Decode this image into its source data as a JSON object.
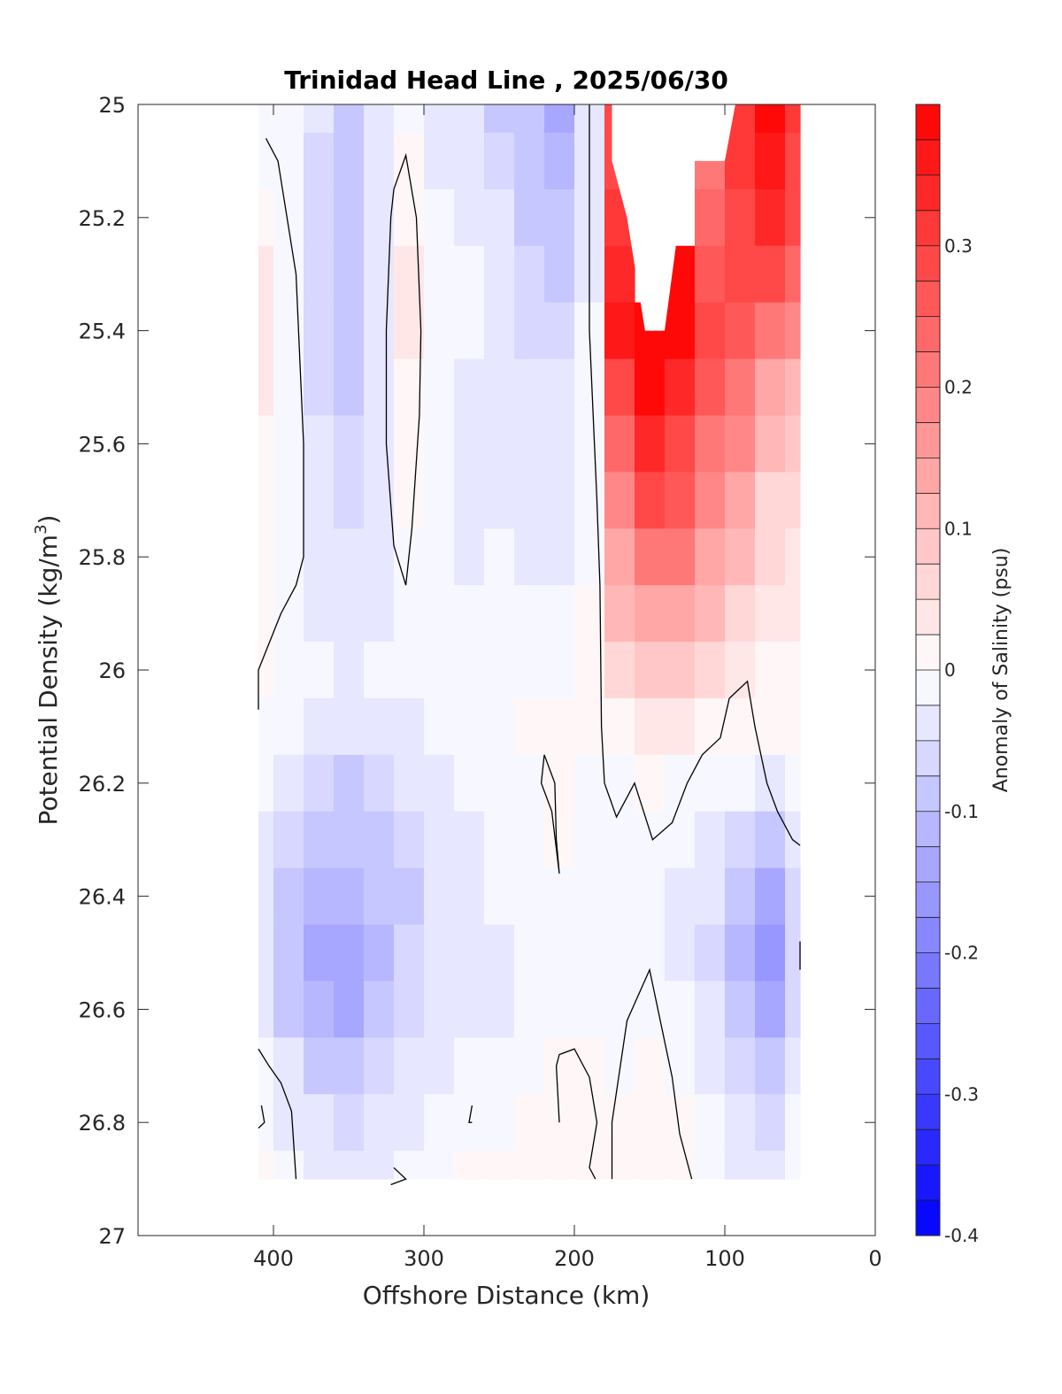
{
  "chart_data": {
    "type": "heatmap",
    "title": "Trinidad Head Line , 2025/06/30",
    "xlabel": "Offshore Distance (km)",
    "ylabel": "Potential Density (kg/m",
    "ylabel_sup": "3",
    "ylabel_close": ")",
    "colorbar_label": "Anomaly of Salinity (psu)",
    "xlim": [
      490,
      0
    ],
    "ylim": [
      25,
      27
    ],
    "x_reversed": true,
    "y_reversed": true,
    "x_ticks": [
      400,
      300,
      200,
      100,
      0
    ],
    "x_tick_labels": [
      "400",
      "300",
      "200",
      "100",
      "0"
    ],
    "y_ticks": [
      25,
      25.2,
      25.4,
      25.6,
      25.8,
      26,
      26.2,
      26.4,
      26.6,
      26.8,
      27
    ],
    "y_tick_labels": [
      "25",
      "25.2",
      "25.4",
      "25.6",
      "25.8",
      "26",
      "26.2",
      "26.4",
      "26.6",
      "26.8",
      "27"
    ],
    "colorbar": {
      "range": [
        -0.4,
        0.4
      ],
      "levels": 32,
      "low_color": "#0000ff",
      "mid_color": "#ffffff",
      "high_color": "#ff0000",
      "ticks": [
        0.3,
        0.2,
        0.1,
        0,
        -0.1,
        -0.2,
        -0.3,
        -0.4
      ],
      "tick_labels": [
        "0.3",
        "0.2",
        "0.1",
        "0",
        "-0.1",
        "-0.2",
        "-0.3",
        "-0.4"
      ]
    },
    "grid": {
      "x": [
        410,
        390,
        370,
        350,
        330,
        310,
        290,
        270,
        250,
        230,
        210,
        190,
        170,
        150,
        130,
        110,
        90,
        70,
        50
      ],
      "y": [
        25.0,
        25.1,
        25.2,
        25.3,
        25.4,
        25.5,
        25.6,
        25.7,
        25.8,
        25.9,
        26.0,
        26.1,
        26.2,
        26.3,
        26.4,
        26.5,
        26.6,
        26.7,
        26.8,
        26.9
      ],
      "z": [
        [
          -0.01,
          -0.02,
          -0.05,
          -0.08,
          -0.05,
          -0.02,
          -0.03,
          -0.05,
          -0.08,
          -0.1,
          -0.14,
          -0.05,
          0.28,
          null,
          null,
          0.2,
          0.32,
          0.38,
          0.32
        ],
        [
          -0.01,
          -0.02,
          -0.06,
          -0.09,
          -0.05,
          0.0,
          -0.03,
          -0.05,
          -0.07,
          -0.09,
          -0.12,
          -0.04,
          0.3,
          null,
          null,
          0.22,
          0.32,
          0.36,
          0.3
        ],
        [
          0.02,
          -0.02,
          -0.07,
          -0.1,
          -0.05,
          0.02,
          -0.02,
          -0.04,
          -0.05,
          -0.08,
          -0.1,
          -0.04,
          0.32,
          null,
          null,
          0.24,
          0.3,
          0.34,
          0.28
        ],
        [
          0.03,
          -0.02,
          -0.07,
          -0.1,
          -0.04,
          0.03,
          -0.01,
          -0.02,
          -0.04,
          -0.07,
          -0.08,
          -0.03,
          0.34,
          null,
          0.38,
          0.26,
          0.28,
          0.3,
          0.24
        ],
        [
          0.03,
          -0.02,
          -0.06,
          -0.09,
          -0.04,
          0.03,
          -0.01,
          -0.02,
          -0.03,
          -0.06,
          -0.06,
          -0.02,
          0.36,
          0.4,
          0.38,
          0.3,
          0.26,
          0.22,
          0.18
        ],
        [
          0.03,
          -0.02,
          -0.06,
          -0.08,
          -0.04,
          0.02,
          -0.02,
          -0.03,
          -0.03,
          -0.05,
          -0.05,
          -0.02,
          0.3,
          0.38,
          0.34,
          0.26,
          0.22,
          0.14,
          0.12
        ],
        [
          0.02,
          -0.02,
          -0.05,
          -0.07,
          -0.04,
          0.01,
          -0.02,
          -0.03,
          -0.03,
          -0.05,
          -0.04,
          -0.01,
          0.24,
          0.34,
          0.3,
          0.22,
          0.18,
          0.1,
          0.08
        ],
        [
          0.02,
          -0.02,
          -0.05,
          -0.06,
          -0.04,
          0.0,
          -0.02,
          -0.03,
          -0.03,
          -0.04,
          -0.03,
          -0.01,
          0.18,
          0.28,
          0.26,
          0.18,
          0.14,
          0.06,
          0.06
        ],
        [
          0.01,
          -0.02,
          -0.04,
          -0.05,
          -0.03,
          -0.01,
          -0.02,
          -0.03,
          -0.02,
          -0.03,
          -0.03,
          -0.01,
          0.14,
          0.22,
          0.2,
          0.14,
          0.1,
          0.05,
          0.04
        ],
        [
          0.0,
          -0.02,
          -0.03,
          -0.04,
          -0.03,
          -0.02,
          -0.02,
          -0.02,
          -0.02,
          -0.02,
          -0.02,
          0.0,
          0.1,
          0.14,
          0.14,
          0.1,
          0.06,
          0.04,
          0.03
        ],
        [
          0.0,
          -0.01,
          -0.02,
          -0.03,
          -0.02,
          -0.02,
          -0.02,
          -0.02,
          -0.01,
          -0.01,
          -0.01,
          0.0,
          0.06,
          0.08,
          0.08,
          0.06,
          0.04,
          0.02,
          0.02
        ],
        [
          -0.01,
          -0.02,
          -0.04,
          -0.05,
          -0.04,
          -0.03,
          -0.02,
          -0.01,
          -0.01,
          0.0,
          0.0,
          0.0,
          0.02,
          0.03,
          0.03,
          0.02,
          0.0,
          0.0,
          0.0
        ],
        [
          -0.02,
          -0.04,
          -0.06,
          -0.08,
          -0.07,
          -0.05,
          -0.03,
          -0.02,
          -0.01,
          -0.02,
          0.0,
          -0.01,
          -0.01,
          0.0,
          -0.01,
          -0.02,
          -0.02,
          -0.03,
          -0.01
        ],
        [
          -0.03,
          -0.06,
          -0.08,
          -0.1,
          -0.09,
          -0.07,
          -0.04,
          -0.03,
          -0.02,
          -0.02,
          0.0,
          -0.01,
          -0.01,
          -0.01,
          -0.02,
          -0.03,
          -0.06,
          -0.08,
          -0.04
        ],
        [
          -0.04,
          -0.08,
          -0.11,
          -0.12,
          -0.1,
          -0.08,
          -0.05,
          -0.04,
          -0.02,
          -0.02,
          -0.01,
          -0.02,
          -0.02,
          -0.01,
          -0.03,
          -0.05,
          -0.1,
          -0.14,
          -0.06
        ],
        [
          -0.04,
          -0.09,
          -0.13,
          -0.14,
          -0.11,
          -0.07,
          -0.05,
          -0.04,
          -0.03,
          -0.02,
          -0.01,
          -0.02,
          -0.02,
          -0.01,
          -0.03,
          -0.06,
          -0.12,
          -0.16,
          -0.07
        ],
        [
          -0.03,
          -0.08,
          -0.12,
          -0.13,
          -0.1,
          -0.06,
          -0.04,
          -0.03,
          -0.03,
          -0.02,
          -0.01,
          -0.01,
          -0.01,
          -0.01,
          -0.02,
          -0.05,
          -0.1,
          -0.14,
          -0.06
        ],
        [
          -0.02,
          -0.05,
          -0.08,
          -0.09,
          -0.07,
          -0.04,
          -0.03,
          -0.02,
          -0.02,
          -0.01,
          0.0,
          0.0,
          -0.01,
          0.0,
          -0.01,
          -0.03,
          -0.07,
          -0.09,
          -0.04
        ],
        [
          -0.01,
          -0.03,
          -0.05,
          -0.06,
          -0.05,
          -0.03,
          -0.02,
          -0.02,
          -0.01,
          0.0,
          0.0,
          0.0,
          0.0,
          0.0,
          0.0,
          -0.02,
          -0.05,
          -0.06,
          -0.02
        ],
        [
          0.02,
          -0.01,
          -0.03,
          -0.04,
          -0.03,
          -0.01,
          -0.01,
          0.0,
          0.0,
          0.0,
          0.0,
          0.0,
          0.0,
          0.0,
          0.0,
          -0.01,
          -0.04,
          -0.04,
          -0.01
        ]
      ]
    },
    "white_region": {
      "note_points": [
        [
          175,
          25.0
        ],
        [
          175,
          25.1
        ],
        [
          165,
          25.2
        ],
        [
          153,
          25.4
        ],
        [
          140,
          25.4
        ],
        [
          130,
          25.2
        ],
        [
          120,
          25.1
        ],
        [
          100,
          25.1
        ],
        [
          93,
          25.0
        ]
      ]
    },
    "zero_contours": [
      [
        [
          405,
          25.06
        ],
        [
          397,
          25.1
        ],
        [
          385,
          25.3
        ],
        [
          380,
          25.6
        ],
        [
          380,
          25.8
        ],
        [
          385,
          25.85
        ],
        [
          395,
          25.9
        ],
        [
          410,
          26.0
        ],
        [
          410,
          26.07
        ]
      ],
      [
        [
          320,
          25.15
        ],
        [
          312,
          25.09
        ],
        [
          305,
          25.2
        ],
        [
          302,
          25.4
        ],
        [
          303,
          25.55
        ],
        [
          308,
          25.75
        ],
        [
          312,
          25.85
        ],
        [
          320,
          25.78
        ],
        [
          325,
          25.6
        ],
        [
          325,
          25.4
        ],
        [
          322,
          25.2
        ],
        [
          320,
          25.15
        ]
      ],
      [
        [
          190,
          25.0
        ],
        [
          190,
          25.4
        ],
        [
          185,
          25.7
        ],
        [
          183,
          25.85
        ],
        [
          182,
          26.1
        ],
        [
          180,
          26.2
        ],
        [
          172,
          26.26
        ],
        [
          160,
          26.2
        ],
        [
          148,
          26.3
        ],
        [
          135,
          26.27
        ],
        [
          125,
          26.2
        ],
        [
          115,
          26.15
        ],
        [
          103,
          26.12
        ],
        [
          97,
          26.05
        ],
        [
          85,
          26.02
        ],
        [
          80,
          26.1
        ],
        [
          72,
          26.2
        ],
        [
          65,
          26.25
        ],
        [
          55,
          26.3
        ],
        [
          50,
          26.31
        ]
      ],
      [
        [
          220,
          26.15
        ],
        [
          213,
          26.2
        ],
        [
          212,
          26.3
        ],
        [
          210,
          26.36
        ],
        [
          215,
          26.25
        ],
        [
          222,
          26.2
        ],
        [
          220,
          26.15
        ]
      ],
      [
        [
          50,
          26.48
        ],
        [
          50,
          26.53
        ]
      ],
      [
        [
          410,
          26.67
        ],
        [
          403,
          26.7
        ],
        [
          395,
          26.73
        ],
        [
          388,
          26.78
        ],
        [
          385,
          26.9
        ]
      ],
      [
        [
          408,
          26.77
        ],
        [
          406,
          26.8
        ],
        [
          410,
          26.81
        ]
      ],
      [
        [
          268,
          26.77
        ],
        [
          270,
          26.8
        ],
        [
          268,
          26.8
        ]
      ],
      [
        [
          320,
          26.88
        ],
        [
          312,
          26.9
        ],
        [
          322,
          26.91
        ]
      ],
      [
        [
          210,
          26.8
        ],
        [
          212,
          26.7
        ],
        [
          210,
          26.68
        ],
        [
          200,
          26.67
        ],
        [
          190,
          26.72
        ],
        [
          185,
          26.8
        ],
        [
          190,
          26.88
        ],
        [
          186,
          26.9
        ]
      ],
      [
        [
          175,
          26.9
        ],
        [
          175,
          26.8
        ],
        [
          165,
          26.62
        ],
        [
          150,
          26.53
        ],
        [
          135,
          26.72
        ],
        [
          130,
          26.82
        ],
        [
          122,
          26.9
        ]
      ]
    ]
  }
}
